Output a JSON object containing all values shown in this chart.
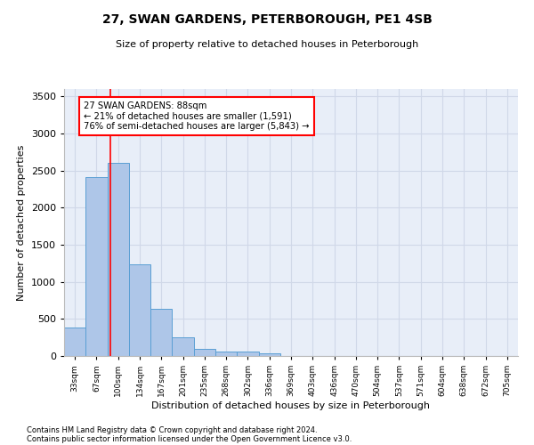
{
  "title_line1": "27, SWAN GARDENS, PETERBOROUGH, PE1 4SB",
  "title_line2": "Size of property relative to detached houses in Peterborough",
  "xlabel": "Distribution of detached houses by size in Peterborough",
  "ylabel": "Number of detached properties",
  "footnote1": "Contains HM Land Registry data © Crown copyright and database right 2024.",
  "footnote2": "Contains public sector information licensed under the Open Government Licence v3.0.",
  "bar_labels": [
    "33sqm",
    "67sqm",
    "100sqm",
    "134sqm",
    "167sqm",
    "201sqm",
    "235sqm",
    "268sqm",
    "302sqm",
    "336sqm",
    "369sqm",
    "403sqm",
    "436sqm",
    "470sqm",
    "504sqm",
    "537sqm",
    "571sqm",
    "604sqm",
    "638sqm",
    "672sqm",
    "705sqm"
  ],
  "bar_values": [
    390,
    2410,
    2600,
    1240,
    640,
    255,
    95,
    60,
    55,
    40,
    0,
    0,
    0,
    0,
    0,
    0,
    0,
    0,
    0,
    0,
    0
  ],
  "bar_color": "#aec6e8",
  "bar_edge_color": "#5a9fd4",
  "ylim": [
    0,
    3600
  ],
  "yticks": [
    0,
    500,
    1000,
    1500,
    2000,
    2500,
    3000,
    3500
  ],
  "red_line_x": 1.65,
  "annotation_text": "27 SWAN GARDENS: 88sqm\n← 21% of detached houses are smaller (1,591)\n76% of semi-detached houses are larger (5,843) →",
  "grid_color": "#d0d8e8",
  "bg_color": "#e8eef8"
}
